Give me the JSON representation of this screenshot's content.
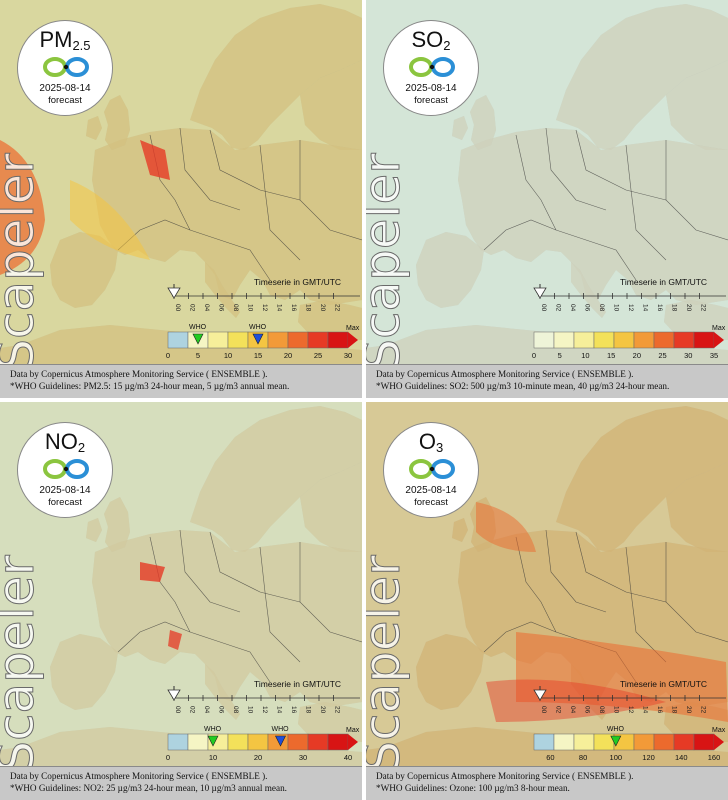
{
  "panels": [
    {
      "pollutant": "PM",
      "subscript": "2.5",
      "date": "2025-08-14",
      "forecast_label": "forecast",
      "watermark": "Scapeler",
      "timeserie_label": "Timeserie in GMT/UTC",
      "hours": [
        "00",
        "02",
        "04",
        "06",
        "08",
        "10",
        "12",
        "14",
        "16",
        "18",
        "20",
        "22"
      ],
      "scale_labels": [
        "0",
        "5",
        "10",
        "15",
        "20",
        "25",
        "30"
      ],
      "max_label": "Max",
      "who_label": "WHO",
      "who_markers": [
        {
          "value": 5,
          "color": "#22cc22"
        },
        {
          "value": 15,
          "color": "#1f4fd8"
        }
      ],
      "scale_min": 0,
      "scale_max": 30,
      "palette": [
        "#aed3e0",
        "#f5f5c4",
        "#f6ef9a",
        "#f3e15a",
        "#f4c542",
        "#f29a38",
        "#ec6a2d",
        "#e63a25",
        "#d81414"
      ],
      "tint": "#f7d86a",
      "hotspots": "heavy",
      "source_line": "Data by Copernicus Atmosphere Monitoring Service ( ENSEMBLE ).",
      "who_line": "*WHO Guidelines: PM2.5: 15 µg/m3 24-hour mean, 5 µg/m3 annual mean."
    },
    {
      "pollutant": "SO",
      "subscript": "2",
      "date": "2025-08-14",
      "forecast_label": "forecast",
      "watermark": "Scapeler",
      "timeserie_label": "Timeserie in GMT/UTC",
      "hours": [
        "00",
        "02",
        "04",
        "06",
        "08",
        "10",
        "12",
        "14",
        "16",
        "18",
        "20",
        "22"
      ],
      "scale_labels": [
        "0",
        "5",
        "10",
        "15",
        "20",
        "25",
        "30",
        "35"
      ],
      "max_label": "Max",
      "who_label": "",
      "who_markers": [],
      "scale_min": 0,
      "scale_max": 35,
      "palette": [
        "#eef4d8",
        "#f5f5c4",
        "#f6ef9a",
        "#f3e15a",
        "#f4c542",
        "#f29a38",
        "#ec6a2d",
        "#e63a25",
        "#d81414"
      ],
      "tint": "#eef2cf",
      "hotspots": "none",
      "source_line": "Data by Copernicus Atmosphere Monitoring Service ( ENSEMBLE ).",
      "who_line": "*WHO Guidelines: SO2: 500 µg/m3 10-minute mean, 40 µg/m3 24-hour mean."
    },
    {
      "pollutant": "NO",
      "subscript": "2",
      "date": "2025-08-14",
      "forecast_label": "forecast",
      "watermark": "Scapeler",
      "timeserie_label": "Timeserie in GMT/UTC",
      "hours": [
        "00",
        "02",
        "04",
        "06",
        "08",
        "10",
        "12",
        "14",
        "16",
        "18",
        "20",
        "22"
      ],
      "scale_labels": [
        "0",
        "10",
        "20",
        "30",
        "40"
      ],
      "max_label": "Max",
      "who_label": "WHO",
      "who_markers": [
        {
          "value": 10,
          "color": "#22cc22"
        },
        {
          "value": 25,
          "color": "#1f4fd8"
        }
      ],
      "scale_min": 0,
      "scale_max": 40,
      "palette": [
        "#aed3e0",
        "#f5f5c4",
        "#f6ef9a",
        "#f3e15a",
        "#f4c542",
        "#f29a38",
        "#ec6a2d",
        "#e63a25",
        "#d81414"
      ],
      "tint": "#f3e6a0",
      "hotspots": "few",
      "source_line": "Data by Copernicus Atmosphere Monitoring Service ( ENSEMBLE ).",
      "who_line": "*WHO Guidelines: NO2: 25 µg/m3 24-hour mean, 10 µg/m3 annual mean."
    },
    {
      "pollutant": "O",
      "subscript": "3",
      "date": "2025-08-14",
      "forecast_label": "forecast",
      "watermark": "Scapeler",
      "timeserie_label": "Timeserie in GMT/UTC",
      "hours": [
        "00",
        "02",
        "04",
        "06",
        "08",
        "10",
        "12",
        "14",
        "16",
        "18",
        "20",
        "22"
      ],
      "scale_labels": [
        "60",
        "80",
        "100",
        "120",
        "140",
        "160"
      ],
      "max_label": "Max",
      "who_label": "WHO",
      "who_markers": [
        {
          "value": 100,
          "color": "#22cc22"
        }
      ],
      "scale_min": 50,
      "scale_max": 160,
      "palette": [
        "#aed3e0",
        "#f5f5c4",
        "#f6ef9a",
        "#f3e15a",
        "#f4c542",
        "#f29a38",
        "#ec6a2d",
        "#e63a25",
        "#d81414"
      ],
      "tint": "#f4c05a",
      "hotspots": "south",
      "source_line": "Data by Copernicus Atmosphere Monitoring Service ( ENSEMBLE ).",
      "who_line": "*WHO Guidelines: Ozone: 100 µg/m3 8-hour mean."
    }
  ],
  "colors": {
    "sea": "#b3d6e0",
    "land_gray": "#a0a0a0",
    "footer_bg": "#c8c8c8"
  }
}
